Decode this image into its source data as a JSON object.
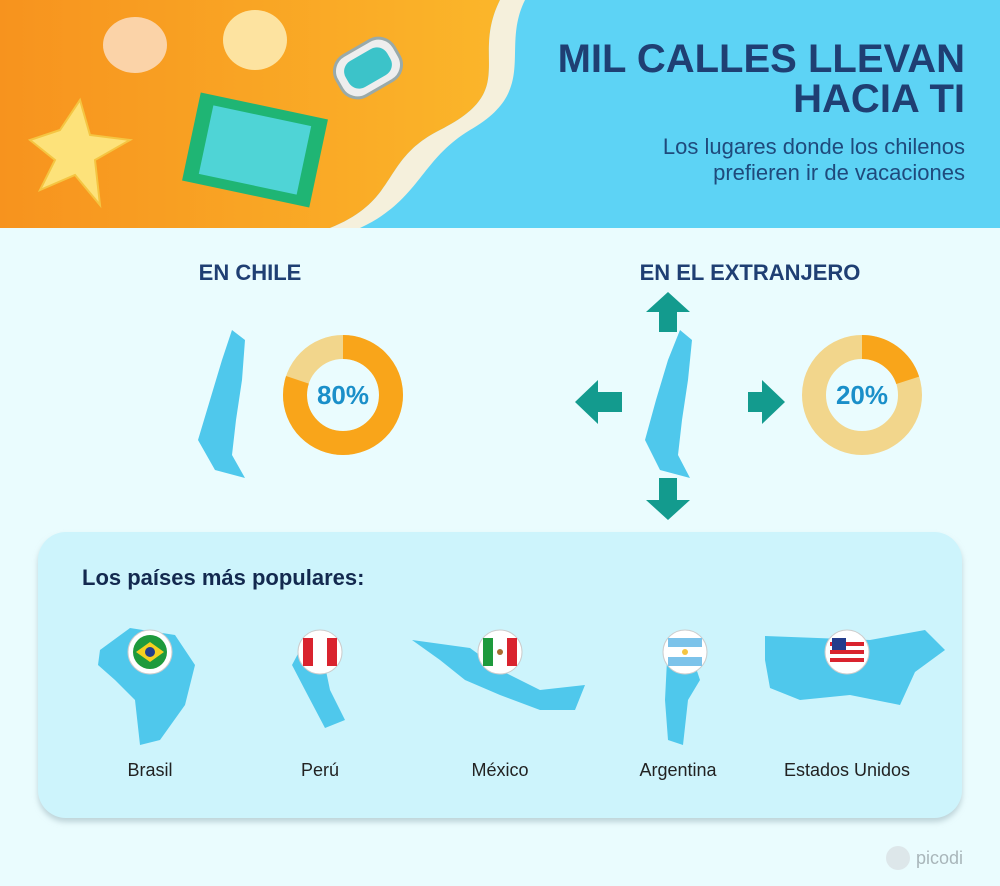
{
  "header": {
    "title_lines": [
      "MIL CALLES LLEVAN",
      "HACIA TI"
    ],
    "subtitle_lines": [
      "Los lugares donde los chilenos",
      "prefieren ir de vacaciones"
    ]
  },
  "domestic": {
    "heading": "EN CHILE",
    "value": 80,
    "value_label": "80%"
  },
  "abroad": {
    "heading": "EN EL EXTRANJERO",
    "value": 20,
    "value_label": "20%"
  },
  "popular": {
    "heading": "Los países más populares:",
    "countries": [
      "Brasil",
      "Perú",
      "México",
      "Argentina",
      "Estados Unidos"
    ]
  },
  "brand": "picodi"
}
